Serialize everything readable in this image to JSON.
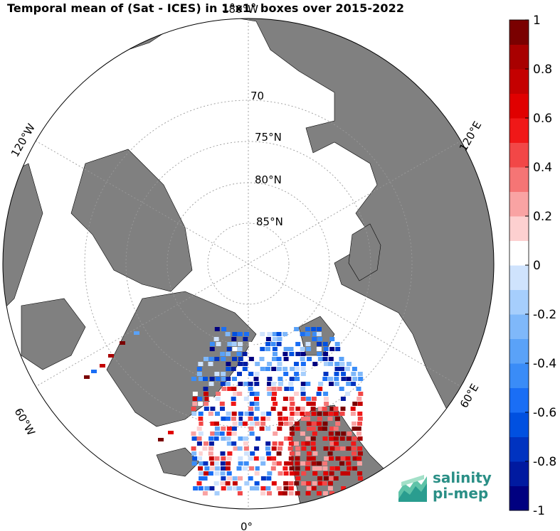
{
  "title": "Temporal mean of (Sat - ICES) in 1°x1° boxes over 2015-2022",
  "projection": "north-polar-stereographic",
  "parallels": [
    {
      "lat": 70,
      "label": "70"
    },
    {
      "lat": 75,
      "label": "75°N"
    },
    {
      "lat": 80,
      "label": "80°N"
    },
    {
      "lat": 85,
      "label": "85°N"
    }
  ],
  "meridians": [
    {
      "lon": 0,
      "label": "0°"
    },
    {
      "lon": 60,
      "label": "60°E"
    },
    {
      "lon": 120,
      "label": "120°E"
    },
    {
      "lon": 180,
      "label": "180°W"
    },
    {
      "lon": -120,
      "label": "120°W"
    },
    {
      "lon": -60,
      "label": "60°W"
    }
  ],
  "colorbar": {
    "min": -1,
    "max": 1,
    "ticks": [
      "1",
      "0.8",
      "0.6",
      "0.4",
      "0.2",
      "0",
      "-0.2",
      "-0.4",
      "-0.6",
      "-0.8",
      "-1"
    ],
    "colors": [
      "#000080",
      "#001aa0",
      "#0033c0",
      "#0050e0",
      "#1a6ef5",
      "#3a8cf7",
      "#5aa2f8",
      "#7fb8fa",
      "#a6cefc",
      "#cfe3fd",
      "#ffffff",
      "#fdd0d0",
      "#f9a3a3",
      "#f57575",
      "#f24747",
      "#f01818",
      "#e00000",
      "#c40000",
      "#a80000",
      "#7a0000"
    ]
  },
  "colors": {
    "land": "#808080",
    "ocean": "#ffffff",
    "ice_fill": "#ffffff"
  },
  "logo": {
    "line1": "salinity",
    "line2": "pi-mep"
  }
}
